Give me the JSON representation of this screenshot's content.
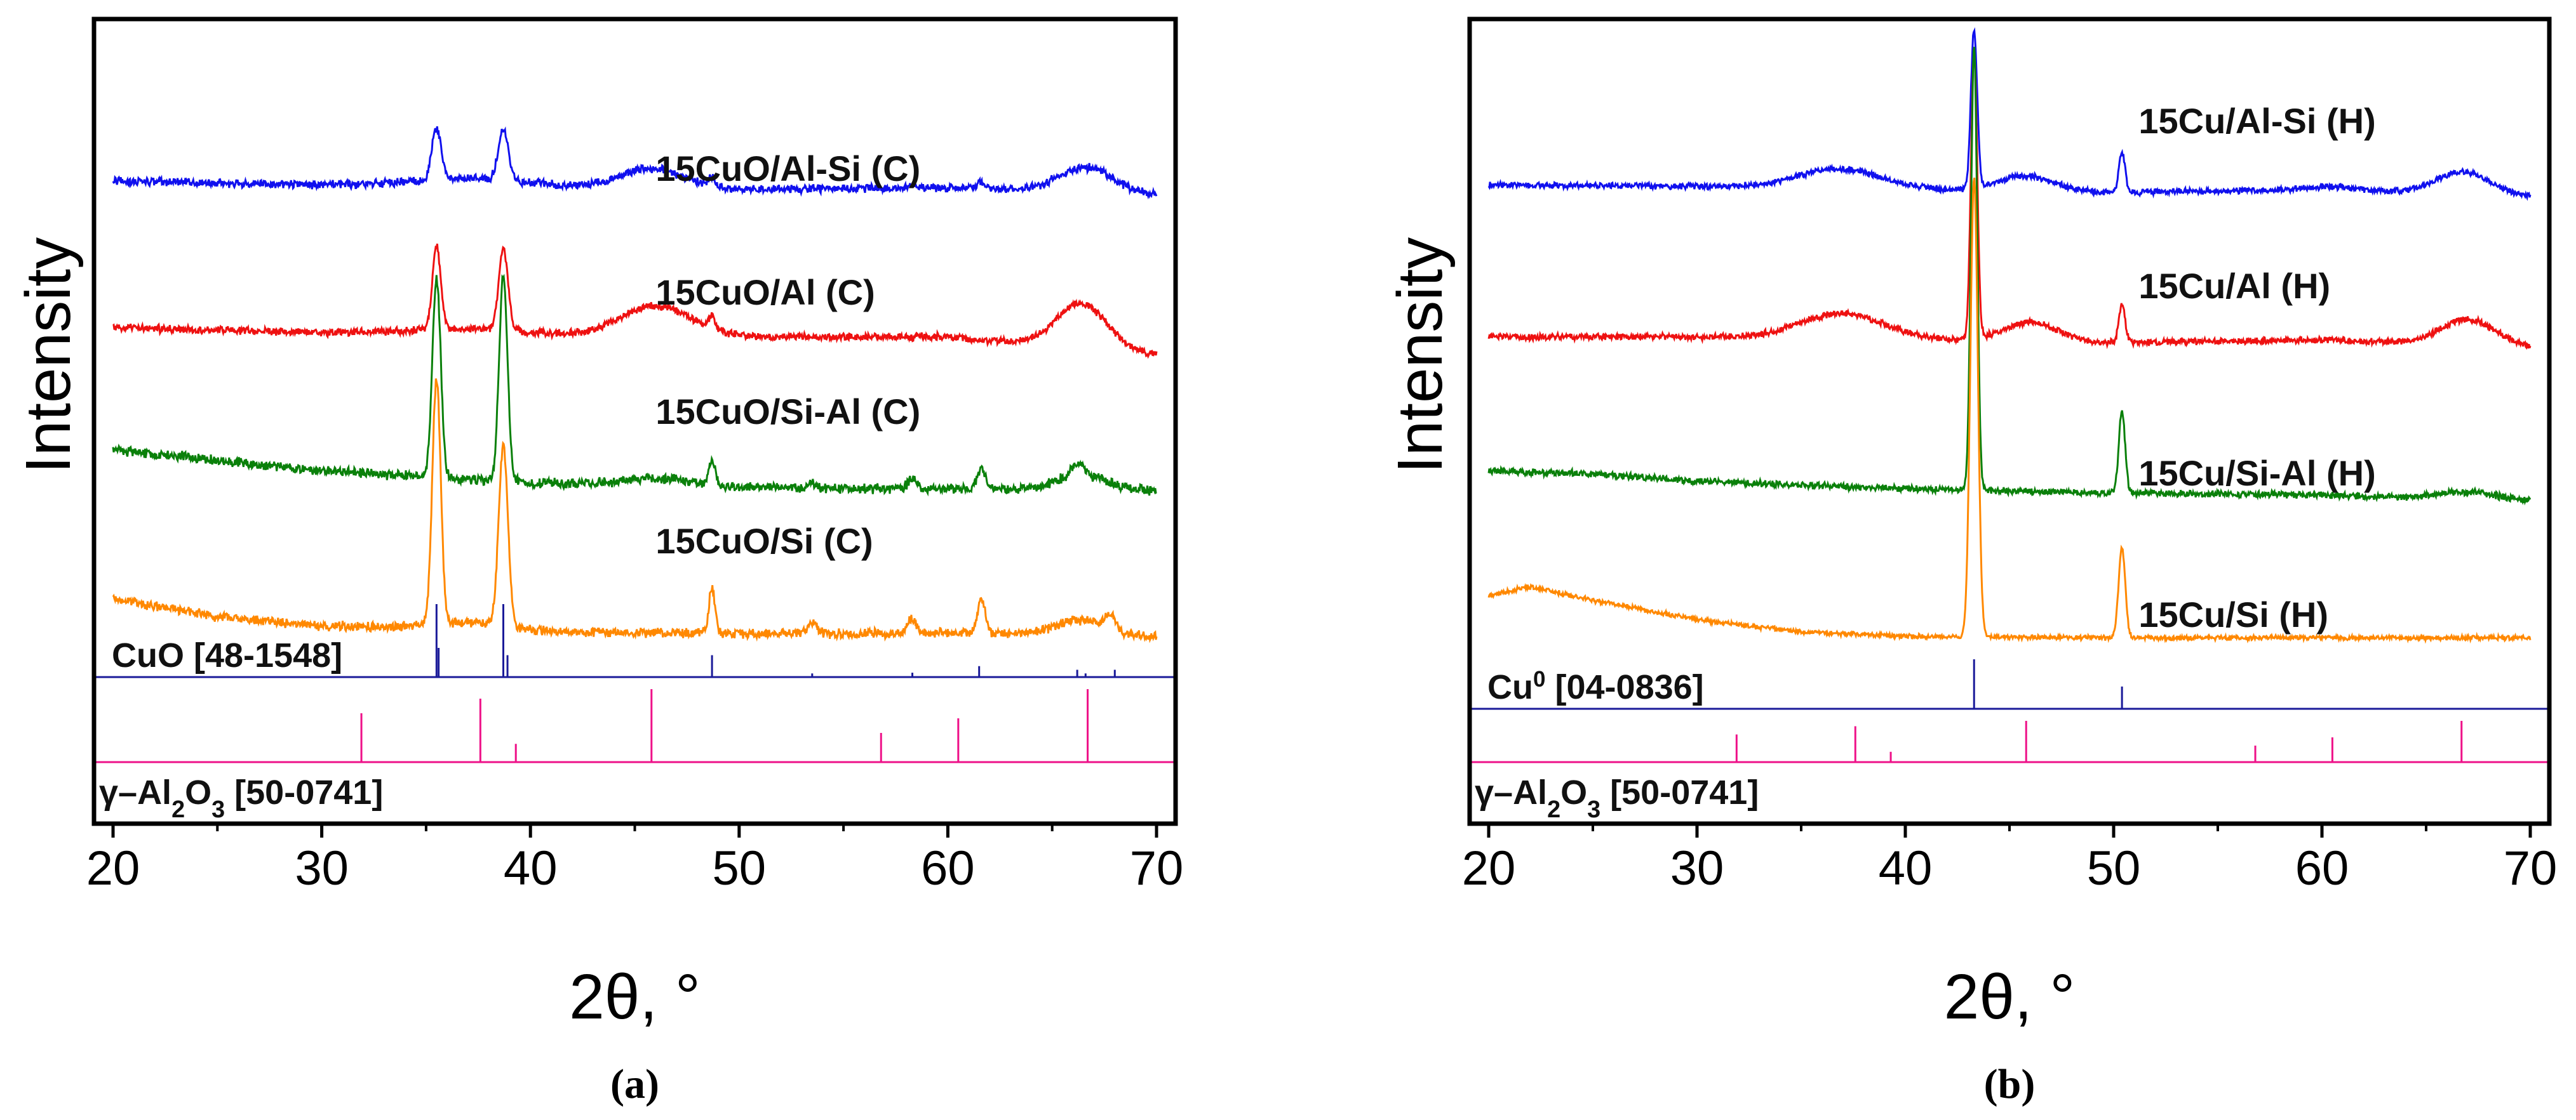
{
  "colors": {
    "blue": "#1010ee",
    "red": "#ee1111",
    "green": "#0a800a",
    "orange": "#ff8800",
    "navy": "#1a1a99",
    "magenta": "#ee1188"
  },
  "chart_data": [
    {
      "type": "line",
      "panel_caption": "(a)",
      "xlabel": "2θ, °",
      "ylabel": "Intensity",
      "xlim": [
        20,
        70
      ],
      "x_ticks": [
        "20",
        "30",
        "40",
        "50",
        "60",
        "70"
      ],
      "series": [
        {
          "name": "15CuO/Al-Si (C)",
          "color": "blue",
          "offset": 3.0,
          "noise": 0.022,
          "baseline": [
            [
              20,
              0.055
            ],
            [
              30,
              0.03
            ],
            [
              40,
              0.02
            ],
            [
              50,
              0.0
            ],
            [
              60,
              0.01
            ],
            [
              70,
              -0.04
            ]
          ],
          "broad_peaks": [
            [
              45.8,
              0.13,
              1.5
            ],
            [
              66.6,
              0.17,
              1.3
            ],
            [
              37.0,
              0.05,
              2.5
            ]
          ],
          "sharp_peaks": [
            [
              35.5,
              0.34,
              0.22
            ],
            [
              38.7,
              0.34,
              0.24
            ],
            [
              48.7,
              0.06,
              0.15
            ],
            [
              61.6,
              0.04,
              0.2
            ],
            [
              58.3,
              0.02,
              0.2
            ]
          ]
        },
        {
          "name": "15CuO/Al (C)",
          "color": "red",
          "offset": 2.0,
          "noise": 0.02,
          "baseline": [
            [
              20,
              0.08
            ],
            [
              30,
              0.05
            ],
            [
              40,
              0.03
            ],
            [
              50,
              0.02
            ],
            [
              60,
              0.02
            ],
            [
              70,
              -0.1
            ]
          ],
          "broad_peaks": [
            [
              46.0,
              0.2,
              1.7
            ],
            [
              66.4,
              0.3,
              1.2
            ],
            [
              37.0,
              0.04,
              2.5
            ]
          ],
          "sharp_peaks": [
            [
              35.5,
              0.55,
              0.2
            ],
            [
              38.7,
              0.55,
              0.22
            ],
            [
              48.7,
              0.08,
              0.15
            ]
          ]
        },
        {
          "name": "15CuO/Si-Al (C)",
          "color": "green",
          "offset": 1.0,
          "noise": 0.026,
          "baseline": [
            [
              20,
              0.27
            ],
            [
              25,
              0.2
            ],
            [
              30,
              0.13
            ],
            [
              40,
              0.05
            ],
            [
              50,
              0.02
            ],
            [
              60,
              0.01
            ],
            [
              70,
              0.0
            ]
          ],
          "broad_peaks": [
            [
              46.0,
              0.05,
              1.5
            ],
            [
              66.4,
              0.1,
              1.2
            ]
          ],
          "sharp_peaks": [
            [
              35.5,
              1.33,
              0.2
            ],
            [
              38.7,
              1.36,
              0.2
            ],
            [
              48.7,
              0.17,
              0.15
            ],
            [
              61.6,
              0.13,
              0.2
            ],
            [
              58.3,
              0.08,
              0.2
            ],
            [
              66.2,
              0.08,
              0.25
            ],
            [
              53.5,
              0.03,
              0.2
            ]
          ]
        },
        {
          "name": "15CuO/Si (C)",
          "color": "orange",
          "offset": 0.0,
          "noise": 0.025,
          "baseline": [
            [
              20,
              0.28
            ],
            [
              25,
              0.16
            ],
            [
              30,
              0.1
            ],
            [
              40,
              0.06
            ],
            [
              50,
              0.05
            ],
            [
              60,
              0.05
            ],
            [
              70,
              0.03
            ]
          ],
          "broad_peaks": [
            [
              66.3,
              0.1,
              1.2
            ],
            [
              37.0,
              0.05,
              2.0
            ]
          ],
          "sharp_peaks": [
            [
              35.5,
              1.63,
              0.2
            ],
            [
              38.7,
              1.2,
              0.22
            ],
            [
              48.7,
              0.3,
              0.15
            ],
            [
              61.6,
              0.22,
              0.2
            ],
            [
              58.3,
              0.1,
              0.2
            ],
            [
              67.8,
              0.1,
              0.25
            ],
            [
              53.5,
              0.08,
              0.2
            ]
          ]
        }
      ],
      "references": [
        {
          "name": "CuO [48-1548]",
          "name_html": "CuO [48-1548]",
          "color": "navy",
          "lines": [
            [
              35.5,
              1.0
            ],
            [
              38.7,
              1.0
            ],
            [
              35.6,
              0.4
            ],
            [
              38.9,
              0.3
            ],
            [
              48.7,
              0.3
            ],
            [
              53.5,
              0.05
            ],
            [
              58.3,
              0.06
            ],
            [
              61.5,
              0.15
            ],
            [
              66.2,
              0.1
            ],
            [
              68.0,
              0.1
            ],
            [
              66.6,
              0.05
            ]
          ]
        },
        {
          "name": "γ–Al2O3 [50-0741]",
          "name_html": "γ–Al<tspan baseline-shift='sub' font-size='70%'>2</tspan>O<tspan baseline-shift='sub' font-size='70%'>3</tspan> [50-0741]",
          "color": "magenta",
          "lines": [
            [
              31.9,
              0.67
            ],
            [
              37.6,
              0.87
            ],
            [
              39.3,
              0.25
            ],
            [
              45.8,
              1.0
            ],
            [
              56.8,
              0.4
            ],
            [
              60.5,
              0.6
            ],
            [
              66.7,
              1.0
            ]
          ]
        }
      ]
    },
    {
      "type": "line",
      "panel_caption": "(b)",
      "xlabel": "2θ, °",
      "ylabel": "Intensity",
      "xlim": [
        20,
        70
      ],
      "x_ticks": [
        "20",
        "30",
        "40",
        "50",
        "60",
        "70"
      ],
      "series": [
        {
          "name": "15Cu/Al-Si (H)",
          "color": "blue",
          "offset": 3.0,
          "noise": 0.016,
          "baseline": [
            [
              20,
              0.03
            ],
            [
              30,
              0.02
            ],
            [
              40,
              0.0
            ],
            [
              50,
              -0.02
            ],
            [
              60,
              0.0
            ],
            [
              70,
              -0.05
            ]
          ],
          "broad_peaks": [
            [
              36.8,
              0.13,
              2.0
            ],
            [
              45.8,
              0.1,
              1.3
            ],
            [
              66.8,
              0.15,
              1.3
            ],
            [
              60.5,
              0.02,
              1.0
            ]
          ],
          "sharp_peaks": [
            [
              43.3,
              1.05,
              0.15
            ],
            [
              50.4,
              0.26,
              0.15
            ]
          ]
        },
        {
          "name": "15Cu/Al (H)",
          "color": "red",
          "offset": 2.0,
          "noise": 0.017,
          "baseline": [
            [
              20,
              0.02
            ],
            [
              30,
              0.02
            ],
            [
              40,
              0.0
            ],
            [
              50,
              -0.02
            ],
            [
              60,
              0.0
            ],
            [
              70,
              -0.05
            ]
          ],
          "broad_peaks": [
            [
              37.0,
              0.17,
              2.0
            ],
            [
              46.0,
              0.13,
              1.3
            ],
            [
              67.0,
              0.17,
              1.3
            ]
          ],
          "sharp_peaks": [
            [
              43.3,
              1.9,
              0.15
            ],
            [
              50.4,
              0.25,
              0.15
            ]
          ]
        },
        {
          "name": "15Cu/Si-Al (H)",
          "color": "green",
          "offset": 1.0,
          "noise": 0.018,
          "baseline": [
            [
              20,
              0.13
            ],
            [
              25,
              0.11
            ],
            [
              30,
              0.06
            ],
            [
              40,
              0.01
            ],
            [
              50,
              -0.02
            ],
            [
              60,
              -0.03
            ],
            [
              70,
              -0.07
            ]
          ],
          "broad_peaks": [
            [
              67.0,
              0.05,
              1.3
            ]
          ],
          "sharp_peaks": [
            [
              43.3,
              2.95,
              0.15
            ],
            [
              50.4,
              0.55,
              0.15
            ]
          ]
        },
        {
          "name": "15Cu/Si (H)",
          "color": "orange",
          "offset": 0.0,
          "noise": 0.012,
          "baseline": [
            [
              20,
              0.3
            ],
            [
              22,
              0.36
            ],
            [
              25,
              0.27
            ],
            [
              30,
              0.14
            ],
            [
              35,
              0.06
            ],
            [
              40,
              0.03
            ],
            [
              50,
              0.02
            ],
            [
              60,
              0.02
            ],
            [
              70,
              0.02
            ]
          ],
          "broad_peaks": [],
          "sharp_peaks": [
            [
              43.3,
              3.05,
              0.18
            ],
            [
              50.4,
              0.6,
              0.16
            ]
          ]
        }
      ],
      "references": [
        {
          "name": "Cu0 [04-0836]",
          "name_html": "Cu<tspan baseline-shift='super' font-size='65%'>0</tspan> [04-0836]",
          "color": "navy",
          "lines": [
            [
              43.3,
              1.0
            ],
            [
              50.4,
              0.45
            ]
          ]
        },
        {
          "name": "γ–Al2O3 [50-0741]",
          "name_html": "γ–Al<tspan baseline-shift='sub' font-size='70%'>2</tspan>O<tspan baseline-shift='sub' font-size='70%'>3</tspan> [50-0741]",
          "color": "magenta",
          "lines": [
            [
              31.9,
              0.67
            ],
            [
              37.6,
              0.87
            ],
            [
              39.3,
              0.25
            ],
            [
              45.8,
              1.0
            ],
            [
              56.8,
              0.4
            ],
            [
              60.5,
              0.6
            ],
            [
              66.7,
              1.0
            ]
          ]
        }
      ]
    }
  ]
}
